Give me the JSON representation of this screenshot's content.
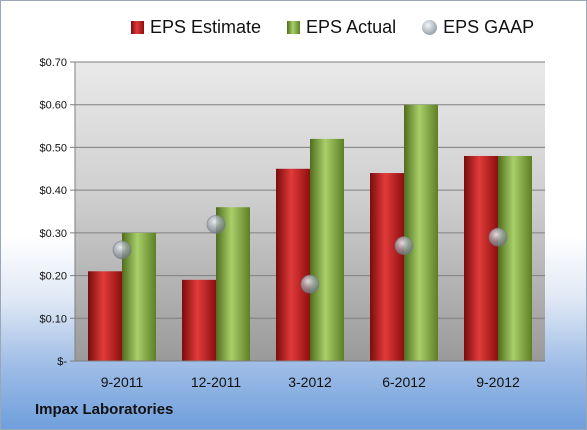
{
  "company": "Impax Laboratories",
  "chart_data": {
    "type": "bar",
    "categories": [
      "9-2011",
      "12-2011",
      "3-2012",
      "6-2012",
      "9-2012"
    ],
    "series": [
      {
        "name": "EPS Estimate",
        "kind": "bar",
        "color": "#c0191c",
        "values": [
          0.21,
          0.19,
          0.45,
          0.44,
          0.48
        ]
      },
      {
        "name": "EPS Actual",
        "kind": "bar",
        "color": "#86b043",
        "values": [
          0.3,
          0.36,
          0.52,
          0.6,
          0.48
        ]
      },
      {
        "name": "EPS GAAP",
        "kind": "marker",
        "color": "#a8b0b8",
        "values": [
          0.26,
          0.32,
          0.18,
          0.27,
          0.29
        ]
      }
    ],
    "yticks": [
      "$-",
      "$0.10",
      "$0.20",
      "$0.30",
      "$0.40",
      "$0.50",
      "$0.60",
      "$0.70"
    ],
    "ylim": [
      0,
      0.7
    ],
    "grid": true,
    "legend_position": "top"
  }
}
